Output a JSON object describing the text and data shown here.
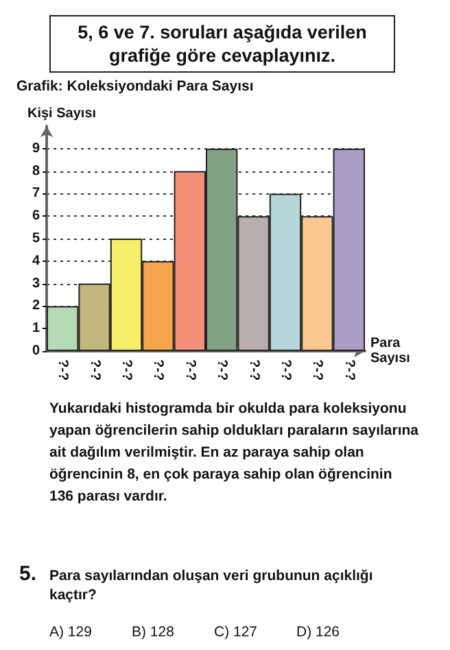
{
  "chart_data": {
    "type": "bar",
    "title": "Grafik: Koleksiyondaki Para Sayısı",
    "xlabel": "Para Sayısı",
    "ylabel": "Kişi Sayısı",
    "categories": [
      "?-?",
      "?-?",
      "?-?",
      "?-?",
      "?-?",
      "?-?",
      "?-?",
      "?-?",
      "?-?",
      "?-?"
    ],
    "values": [
      2,
      3,
      5,
      4,
      8,
      9,
      6,
      7,
      6,
      9
    ],
    "colors": [
      "#b5dbb5",
      "#c4b77d",
      "#f7ee6a",
      "#f7a54a",
      "#f28f76",
      "#81a383",
      "#bbaeae",
      "#b4d8da",
      "#fbc98f",
      "#ab9fc8"
    ],
    "ylim": [
      0,
      10
    ],
    "yticks": [
      0,
      1,
      2,
      3,
      4,
      5,
      6,
      7,
      8,
      9
    ],
    "grid": "y",
    "annotations": [
      "5, 6 ve 7. soruları aşağıda verilen grafiğe göre cevaplayınız.",
      "Yukarıdaki histogramda bir okulda para koleksiyonu yapan öğrencilerin sahip oldukları paraların sayılarına ait dağılım verilmiştir. En az paraya sahip olan öğrencinin 8, en çok paraya sahip olan öğrencinin 136 parası vardır.",
      "5.",
      "Para sayılarından oluşan veri grubunun açıklığı kaçtır?",
      "A) 129",
      "B) 128",
      "C) 127",
      "D) 126"
    ]
  }
}
